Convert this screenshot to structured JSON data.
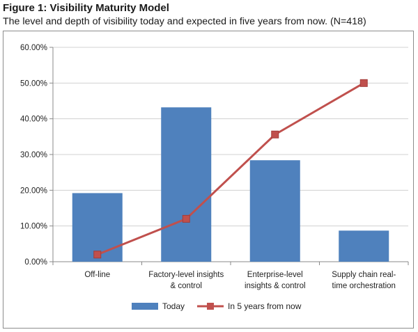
{
  "figure": {
    "title": "Figure 1: Visibility Maturity Model",
    "subtitle": "The level and depth of visibility today and expected in five years from now. (N=418)"
  },
  "colors": {
    "today": "#4f81bd",
    "in5": "#c0504d",
    "grid": "#d0d0d0",
    "axis": "#888888"
  },
  "chart_data": {
    "type": "bar",
    "categories": [
      [
        "Off-line"
      ],
      [
        "Factory-level insights",
        "& control"
      ],
      [
        "Enterprise-level",
        "insights & control"
      ],
      [
        "Supply chain real-",
        "time orchestration"
      ]
    ],
    "series": [
      {
        "name": "Today",
        "type": "bar",
        "values": [
          19.2,
          43.2,
          28.4,
          8.7
        ]
      },
      {
        "name": "In 5 years from now",
        "type": "line",
        "values": [
          2.0,
          12.0,
          35.6,
          50.0
        ]
      }
    ],
    "ylim": [
      0,
      60
    ],
    "yticks": [
      "0.00%",
      "10.00%",
      "20.00%",
      "30.00%",
      "40.00%",
      "50.00%",
      "60.00%"
    ],
    "grid": true,
    "legend_position": "bottom"
  }
}
